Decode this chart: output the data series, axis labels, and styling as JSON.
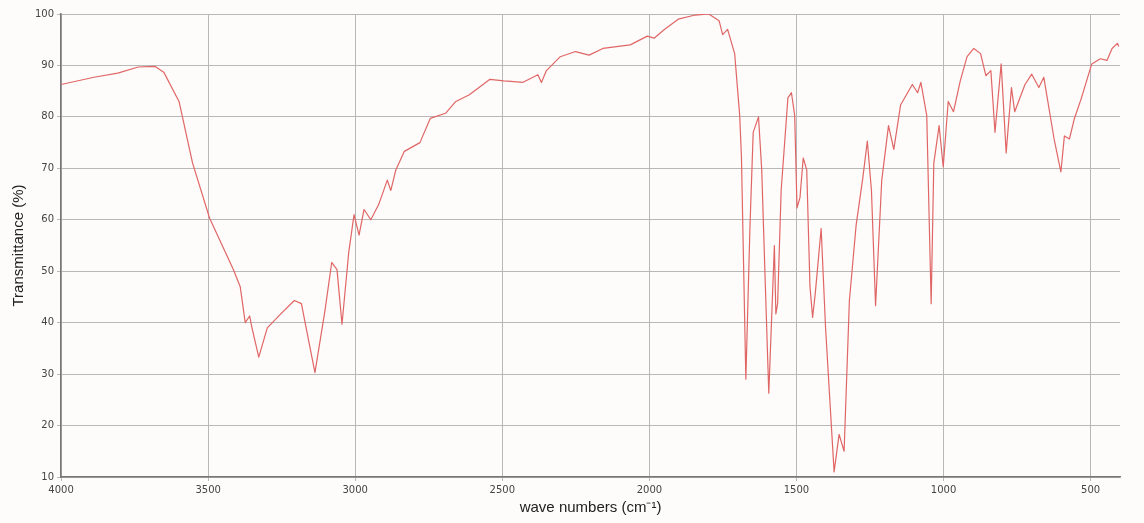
{
  "chart_data": {
    "type": "line",
    "xlabel": "wave numbers (cm⁻¹)",
    "ylabel": "Transmittance (%)",
    "xlim": [
      4000,
      400
    ],
    "xticks": [
      4000,
      3500,
      3000,
      2500,
      2000,
      1500,
      1000,
      500
    ],
    "ylim": [
      10,
      100
    ],
    "yticks": [
      10,
      20,
      30,
      40,
      50,
      60,
      70,
      80,
      90,
      100
    ],
    "grid": true,
    "legend": false,
    "marker": "none",
    "line_style": "solid",
    "series": [
      {
        "color": "#e06666",
        "x": [
          4000,
          3888,
          3807,
          3738,
          3680,
          3651,
          3599,
          3553,
          3495,
          3414,
          3391,
          3374,
          3359,
          3351,
          3328,
          3299,
          3253,
          3207,
          3183,
          3137,
          3103,
          3080,
          3062,
          3045,
          3022,
          3004,
          2987,
          2970,
          2947,
          2920,
          2891,
          2879,
          2862,
          2833,
          2780,
          2745,
          2693,
          2658,
          2612,
          2542,
          2495,
          2431,
          2379,
          2367,
          2350,
          2303,
          2251,
          2205,
          2158,
          2065,
          2007,
          1984,
          1949,
          1902,
          1844,
          1798,
          1763,
          1751,
          1734,
          1710,
          1693,
          1687,
          1672,
          1658,
          1647,
          1629,
          1618,
          1606,
          1594,
          1575,
          1570,
          1564,
          1552,
          1529,
          1517,
          1506,
          1498,
          1488,
          1477,
          1465,
          1454,
          1445,
          1436,
          1416,
          1401,
          1372,
          1355,
          1338,
          1320,
          1297,
          1274,
          1259,
          1245,
          1231,
          1210,
          1187,
          1169,
          1146,
          1106,
          1088,
          1077,
          1057,
          1042,
          1033,
          1015,
          1001,
          984,
          966,
          943,
          920,
          897,
          874,
          856,
          839,
          825,
          804,
          787,
          769,
          758,
          723,
          700,
          676,
          659,
          624,
          601,
          589,
          572,
          555,
          531,
          496,
          467,
          444,
          427,
          409,
          404
        ],
        "values": [
          86.3,
          87.7,
          88.5,
          89.7,
          89.8,
          88.7,
          83,
          71,
          60.3,
          50.3,
          47,
          40,
          41.3,
          39,
          33.3,
          39,
          41.7,
          44.3,
          43.7,
          30.3,
          42.3,
          51.7,
          50.3,
          39.7,
          53.7,
          61,
          57,
          62,
          60,
          63,
          67.7,
          65.7,
          69.7,
          73.3,
          75,
          79.7,
          80.7,
          83,
          84.3,
          87.3,
          87,
          86.7,
          88.2,
          86.7,
          89,
          91.7,
          92.7,
          92,
          93.3,
          94,
          95.7,
          95.3,
          97,
          99,
          99.8,
          100,
          98.7,
          96,
          97,
          92.3,
          80.3,
          72.3,
          29,
          58.7,
          77,
          80,
          69.7,
          47.7,
          26.3,
          55,
          41.7,
          43.7,
          65.7,
          83.7,
          84.7,
          80.3,
          62.3,
          64.3,
          72,
          69.7,
          47,
          41,
          45.7,
          58.3,
          39,
          11,
          18.3,
          15,
          44.3,
          59,
          68.3,
          75.3,
          65.7,
          43.3,
          67.7,
          78.3,
          73.7,
          82.3,
          86.3,
          84.7,
          86.7,
          80.3,
          43.7,
          71,
          78.3,
          70.3,
          83,
          81,
          87,
          91.7,
          93.3,
          92.3,
          88,
          89,
          77,
          90.3,
          73,
          85.7,
          81,
          86.3,
          88.3,
          85.7,
          87.7,
          75.7,
          69.3,
          76.3,
          75.7,
          79.7,
          83.7,
          90.3,
          91.3,
          91,
          93.3,
          94.3,
          93.7
        ]
      }
    ]
  }
}
